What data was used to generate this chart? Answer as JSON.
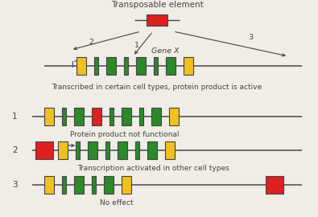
{
  "bg_color": "#f0ece6",
  "line_color": "#444444",
  "chrom_color": "#555555",
  "red": "#dd2020",
  "yellow": "#f0c020",
  "green": "#2a8a2a",
  "title_text": "Transposable element",
  "gene_x_text": "Gene X",
  "caption0": "Transcribed in certain cell types, protein product is active",
  "caption1": "Protein product not functional",
  "caption2": "Transcription activated in other cell types",
  "caption3": "No effect",
  "font_size_title": 7.5,
  "font_size_label": 6.8,
  "font_size_caption": 6.5,
  "font_size_number": 7.5
}
